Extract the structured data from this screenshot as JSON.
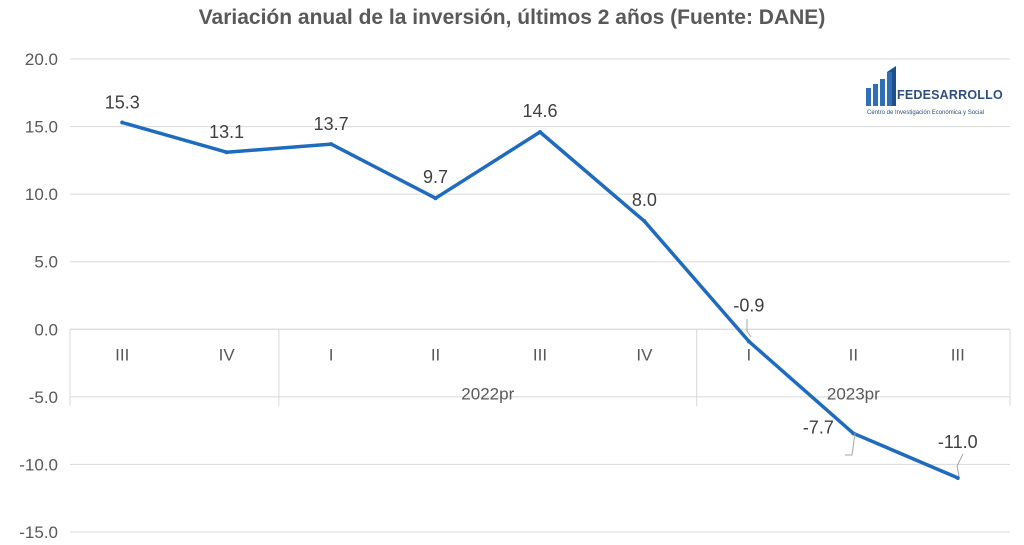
{
  "title": "Variación anual de la inversión, últimos 2 años (Fuente: DANE)",
  "logo": {
    "name": "FEDESARROLLO",
    "subtitle": "Centro de Investigación Económica y Social"
  },
  "colors": {
    "line": "#1f6bbd",
    "grid": "#d9d9d9",
    "text": "#595959",
    "title": "#595959"
  },
  "chart_data": {
    "type": "line",
    "title": "Variación anual de la inversión, últimos 2 años (Fuente: DANE)",
    "categories": [
      "III",
      "IV",
      "I",
      "II",
      "III",
      "IV",
      "I",
      "II",
      "III"
    ],
    "groups": [
      {
        "label": "2022pr",
        "start": 2,
        "end": 5
      },
      {
        "label": "2023pr",
        "start": 6,
        "end": 8
      }
    ],
    "series": [
      {
        "values": [
          15.3,
          13.1,
          13.7,
          9.7,
          14.6,
          8.0,
          -0.9,
          -7.7,
          -11.0
        ]
      }
    ],
    "data_labels": [
      "15.3",
      "13.1",
      "13.7",
      "9.7",
      "14.6",
      "8.0",
      "-0.9",
      "-7.7",
      "-11.0"
    ],
    "y_ticks": [
      "20.0",
      "15.0",
      "10.0",
      "5.0",
      "0.0",
      "-5.0",
      "-10.0",
      "-15.0"
    ],
    "ylim": [
      -15,
      20
    ],
    "grid": true,
    "legend": "none"
  }
}
